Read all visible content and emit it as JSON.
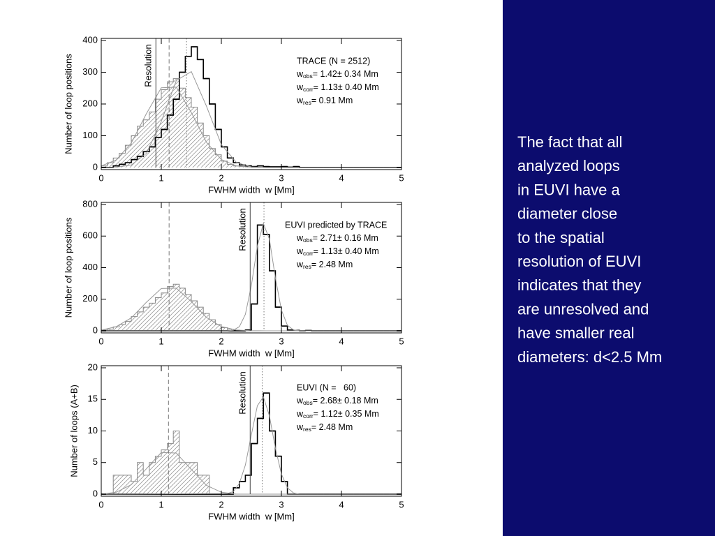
{
  "chart_data": [
    {
      "type": "histogram",
      "xlabel": "FWHM width  w [Mm]",
      "ylabel": "Number of loop positions",
      "xlim": [
        0,
        5
      ],
      "xticks": [
        0,
        1,
        2,
        3,
        4,
        5
      ],
      "ylim": [
        0,
        400
      ],
      "yticks": [
        0,
        100,
        200,
        300,
        400
      ],
      "bins": [
        0,
        0.1,
        0.2,
        0.3,
        0.4,
        0.5,
        0.6,
        0.7,
        0.8,
        0.9,
        1,
        1.1,
        1.2,
        1.3,
        1.4,
        1.5,
        1.6,
        1.7,
        1.8,
        1.9,
        2,
        2.1,
        2.2,
        2.3,
        2.4,
        2.5,
        2.6,
        2.7,
        2.8,
        2.9,
        3,
        3.1,
        3.2,
        3.3,
        3.4,
        3.5,
        3.6,
        3.7,
        3.8,
        3.9,
        4,
        4.1,
        4.2,
        4.3,
        4.4,
        4.5,
        4.6,
        4.7,
        4.8,
        4.9,
        5
      ],
      "series": [
        {
          "color": "#888888",
          "hatch": true,
          "values": [
            5,
            15,
            30,
            45,
            70,
            100,
            130,
            150,
            175,
            215,
            245,
            270,
            280,
            250,
            220,
            190,
            140,
            100,
            60,
            40,
            20,
            10,
            5,
            3,
            2,
            0,
            0,
            0,
            0,
            0,
            0,
            0,
            0,
            0,
            0,
            0,
            0,
            0,
            0,
            0,
            0,
            0,
            0,
            0,
            0,
            0,
            0,
            0,
            0,
            0
          ]
        },
        {
          "color": "#000000",
          "hatch": false,
          "values": [
            0,
            0,
            5,
            10,
            15,
            25,
            35,
            50,
            65,
            95,
            120,
            165,
            215,
            300,
            350,
            380,
            340,
            280,
            200,
            120,
            65,
            30,
            15,
            8,
            5,
            3,
            5,
            3,
            2,
            2,
            3,
            1,
            3,
            0,
            0,
            0,
            0,
            0,
            0,
            0,
            0,
            0,
            0,
            0,
            0,
            0,
            0,
            0,
            0,
            0
          ]
        }
      ],
      "curves": [
        {
          "color": "#999999",
          "x": [
            0,
            0.25,
            0.5,
            0.75,
            1,
            1.25,
            1.5,
            1.75,
            2,
            2.25,
            2.5,
            2.75,
            3,
            3.25,
            3.5,
            3.75,
            4,
            4.25,
            4.5,
            4.75,
            5
          ],
          "values": [
            0,
            0.8,
            8,
            44,
            145,
            274,
            302,
            194,
            72,
            16,
            2,
            0,
            0,
            0,
            0,
            0,
            0,
            0,
            0,
            0,
            0
          ]
        },
        {
          "color": "#999999",
          "x": [
            0,
            0.25,
            0.5,
            0.75,
            1,
            1.25,
            1.5,
            1.75,
            2,
            2.25,
            2.5,
            2.75,
            3,
            3.25,
            3.5,
            3.75,
            4,
            4.25,
            4.5,
            4.75,
            5
          ],
          "values": [
            5,
            24,
            77,
            169,
            251,
            253,
            173,
            80,
            25,
            5,
            1,
            0,
            0,
            0,
            0,
            0,
            0,
            0,
            0,
            0,
            0
          ]
        }
      ],
      "vlines": [
        {
          "value": 0.91,
          "style": "solid",
          "label": "Resolution"
        },
        {
          "value": 1.13,
          "style": "dashed"
        },
        {
          "value": 1.42,
          "style": "dotted"
        }
      ],
      "legend_title": "TRACE (N = 2512)",
      "stats": [
        {
          "symbol": "w",
          "sub": "obs",
          "text": "= 1.42± 0.34 Mm"
        },
        {
          "symbol": "w",
          "sub": "corr",
          "text": "= 1.13± 0.40 Mm"
        },
        {
          "symbol": "w",
          "sub": "res",
          "text": "= 0.91 Mm"
        }
      ]
    },
    {
      "type": "histogram",
      "xlabel": "FWHM width  w [Mm]",
      "ylabel": "Number of loop positions",
      "xlim": [
        0,
        5
      ],
      "xticks": [
        0,
        1,
        2,
        3,
        4,
        5
      ],
      "ylim": [
        0,
        800
      ],
      "yticks": [
        0,
        200,
        400,
        600,
        800
      ],
      "bins": [
        0,
        0.1,
        0.2,
        0.3,
        0.4,
        0.5,
        0.6,
        0.7,
        0.8,
        0.9,
        1,
        1.1,
        1.2,
        1.3,
        1.4,
        1.5,
        1.6,
        1.7,
        1.8,
        1.9,
        2,
        2.1,
        2.2,
        2.3,
        2.4,
        2.5,
        2.6,
        2.7,
        2.8,
        2.9,
        3,
        3.1,
        3.2,
        3.3,
        3.4,
        3.5,
        3.6,
        3.7,
        3.8,
        3.9,
        4,
        4.1,
        4.2,
        4.3,
        4.4,
        4.5,
        4.6,
        4.7,
        4.8,
        4.9,
        5
      ],
      "series": [
        {
          "color": "#888888",
          "hatch": true,
          "values": [
            5,
            10,
            25,
            40,
            60,
            90,
            120,
            150,
            175,
            210,
            240,
            280,
            295,
            270,
            230,
            190,
            150,
            110,
            70,
            40,
            20,
            10,
            5,
            2,
            0,
            0,
            0,
            0,
            0,
            0,
            0,
            0,
            0,
            0,
            0,
            0,
            0,
            0,
            0,
            0,
            0,
            0,
            0,
            0,
            0,
            0,
            0,
            0,
            0,
            0
          ]
        },
        {
          "color": "#000000",
          "hatch": false,
          "values": [
            0,
            0,
            0,
            0,
            0,
            0,
            0,
            0,
            0,
            0,
            0,
            0,
            0,
            0,
            0,
            0,
            0,
            0,
            0,
            0,
            0,
            0,
            0,
            0,
            5,
            170,
            670,
            610,
            380,
            150,
            30,
            5,
            3,
            0,
            2,
            0,
            0,
            0,
            0,
            0,
            0,
            0,
            0,
            0,
            0,
            0,
            0,
            0,
            0,
            0
          ]
        }
      ],
      "curves": [
        {
          "color": "#999999",
          "x": [
            0,
            0.25,
            0.5,
            0.75,
            1,
            1.25,
            1.5,
            1.75,
            2,
            2.25,
            2.5,
            2.75,
            3,
            3.25,
            3.5,
            3.75,
            4,
            4.25,
            4.5,
            4.75,
            5
          ],
          "values": [
            5,
            26,
            82,
            180,
            268,
            270,
            185,
            85,
            27,
            5,
            1,
            0,
            0,
            0,
            0,
            0,
            0,
            0,
            0,
            0,
            0
          ]
        },
        {
          "color": "#999999",
          "x": [
            0,
            2.1,
            2.2,
            2.3,
            2.4,
            2.5,
            2.6,
            2.7,
            2.8,
            2.9,
            3,
            3.1,
            3.2,
            3.3,
            3.4,
            5
          ],
          "values": [
            0,
            0,
            4,
            26,
            104,
            287,
            537,
            680,
            581,
            336,
            132,
            35,
            6,
            1,
            0,
            0
          ]
        }
      ],
      "vlines": [
        {
          "value": 2.48,
          "style": "solid",
          "label": "Resolution"
        },
        {
          "value": 1.13,
          "style": "dashed"
        },
        {
          "value": 2.71,
          "style": "dotted"
        }
      ],
      "legend_title": "EUVI predicted by TRACE",
      "stats": [
        {
          "symbol": "w",
          "sub": "obs",
          "text": "= 2.71± 0.16 Mm"
        },
        {
          "symbol": "w",
          "sub": "corr",
          "text": "= 1.13± 0.40 Mm"
        },
        {
          "symbol": "w",
          "sub": "res",
          "text": "= 2.48 Mm"
        }
      ]
    },
    {
      "type": "histogram",
      "xlabel": "FWHM width  w [Mm]",
      "ylabel": "Number of loops (A+B)",
      "xlim": [
        0,
        5
      ],
      "xticks": [
        0,
        1,
        2,
        3,
        4,
        5
      ],
      "ylim": [
        0,
        20
      ],
      "yticks": [
        0,
        5,
        10,
        15,
        20
      ],
      "bins": [
        0,
        0.1,
        0.2,
        0.3,
        0.4,
        0.5,
        0.6,
        0.7,
        0.8,
        0.9,
        1,
        1.1,
        1.2,
        1.3,
        1.4,
        1.5,
        1.6,
        1.7,
        1.8,
        1.9,
        2,
        2.1,
        2.2,
        2.3,
        2.4,
        2.5,
        2.6,
        2.7,
        2.8,
        2.9,
        3,
        3.1,
        3.2,
        3.3,
        3.4,
        3.5,
        3.6,
        3.7,
        3.8,
        3.9,
        4,
        4.1,
        4.2,
        4.3,
        4.4,
        4.5,
        4.6,
        4.7,
        4.8,
        4.9,
        5
      ],
      "series": [
        {
          "color": "#888888",
          "hatch": true,
          "values": [
            0,
            0,
            3,
            3,
            3,
            2,
            5,
            3,
            5,
            6,
            7,
            8,
            10,
            5,
            5,
            5,
            3,
            3,
            0,
            0,
            0,
            0,
            0,
            0,
            0,
            0,
            0,
            0,
            0,
            0,
            0,
            0,
            0,
            0,
            0,
            0,
            0,
            0,
            0,
            0,
            0,
            0,
            0,
            0,
            0,
            0,
            0,
            0,
            0,
            0
          ]
        },
        {
          "color": "#000000",
          "hatch": false,
          "values": [
            0,
            0,
            0,
            0,
            0,
            0,
            0,
            0,
            0,
            0,
            0,
            0,
            0,
            0,
            0,
            0,
            0,
            0,
            0,
            0,
            0,
            0,
            1,
            2,
            3,
            8,
            12,
            16,
            10,
            6,
            2,
            0,
            0,
            0,
            0,
            0,
            0,
            0,
            0,
            0,
            0,
            0,
            0,
            0,
            0,
            0,
            0,
            0,
            0,
            0
          ]
        }
      ],
      "curves": [
        {
          "color": "#999999",
          "x": [
            0,
            0.25,
            0.5,
            0.75,
            1,
            1.25,
            1.5,
            1.75,
            2,
            2.25,
            2.5,
            2.75,
            3,
            3.25,
            3.5,
            3.75,
            4,
            4.25,
            4.5,
            4.75,
            5
          ],
          "values": [
            0,
            0.3,
            1.5,
            4,
            6.6,
            6.5,
            3.9,
            1.4,
            0.3,
            0,
            0,
            0,
            0,
            0,
            0,
            0,
            0,
            0,
            0,
            0,
            0
          ]
        },
        {
          "color": "#999999",
          "x": [
            0,
            2.1,
            2.2,
            2.3,
            2.4,
            2.5,
            2.6,
            2.7,
            2.8,
            2.9,
            3,
            3.1,
            3.2,
            3.3,
            5
          ],
          "values": [
            0,
            0.1,
            0.4,
            1.7,
            4.6,
            9.4,
            14,
            15.4,
            12.4,
            7.3,
            3.2,
            1,
            0.2,
            0,
            0
          ]
        }
      ],
      "vlines": [
        {
          "value": 2.48,
          "style": "solid",
          "label": "Resolution"
        },
        {
          "value": 1.12,
          "style": "dashed"
        },
        {
          "value": 2.68,
          "style": "dotted"
        }
      ],
      "legend_title": "EUVI (N =   60)",
      "stats": [
        {
          "symbol": "w",
          "sub": "obs",
          "text": "= 2.68± 0.18 Mm"
        },
        {
          "symbol": "w",
          "sub": "corr",
          "text": "= 1.12± 0.35 Mm"
        },
        {
          "symbol": "w",
          "sub": "res",
          "text": "= 2.48 Mm"
        }
      ]
    }
  ],
  "slide": {
    "text_lines": [
      "The fact that all",
      "analyzed loops",
      "in EUVI have a",
      "diameter close",
      "to the spatial",
      "resolution of EUVI",
      "indicates that they",
      "are unresolved and",
      "have smaller real",
      "diameters: d<2.5 Mm"
    ]
  }
}
